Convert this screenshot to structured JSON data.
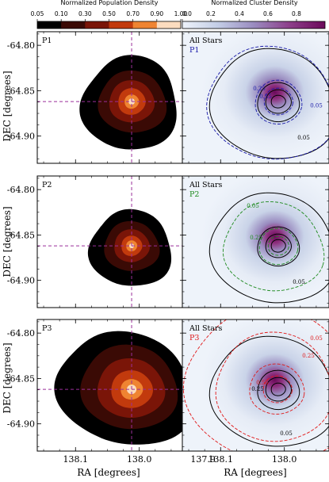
{
  "colors": {
    "pop_scale": [
      "#000000",
      "#3a0a05",
      "#7a1508",
      "#c23a0d",
      "#ef8432",
      "#fbdcbf"
    ],
    "cluster_bg": "#e9eff8",
    "cluster_mid": "#8e86b8",
    "cluster_peak": "#6b0a5a",
    "all_stars_line": "#000000",
    "p1_color": "#1a1aa8",
    "p2_color": "#1d8a1d",
    "p3_color": "#e01818",
    "crosshair": "#9b2f9b"
  },
  "chart_data": {
    "type": "contour",
    "x_label": "RA [degrees]",
    "y_label": "DEC [degrees]",
    "x_ticks": [
      138.1,
      138.0,
      137.9
    ],
    "x_tick_labels": [
      "138.1",
      "138.0",
      "137.9"
    ],
    "x_range": [
      138.16,
      137.93
    ],
    "y_ticks": [
      -64.8,
      -64.85,
      -64.9
    ],
    "y_tick_labels": [
      "-64.80",
      "-64.85",
      "-64.90"
    ],
    "y_range": [
      -64.93,
      -64.785
    ],
    "crosshair": {
      "ra": 138.012,
      "dec": -64.862
    },
    "left_colorbar": {
      "title": "Normalized Population Density",
      "levels": [
        0.05,
        0.1,
        0.3,
        0.5,
        0.7,
        0.9,
        1.0
      ],
      "tick_labels": [
        "0.05",
        "0.10",
        "0.30",
        "0.50",
        "0.70",
        "0.90",
        "1.00"
      ]
    },
    "right_colorbar": {
      "title": "Normalized Cluster Density",
      "range": [
        0.0,
        1.0
      ],
      "ticks": [
        0.0,
        0.2,
        0.4,
        0.6,
        0.8
      ],
      "tick_labels": [
        "0.0",
        "0.2",
        "0.4",
        "0.6",
        "0.8"
      ]
    },
    "rows": [
      {
        "population": "P1",
        "all_stars_legend": "All Stars",
        "pop_legend": "P1",
        "pop_contour_labels": [
          "0.05",
          "0.25",
          "0.55"
        ],
        "all_contour_labels": [
          "0.05"
        ]
      },
      {
        "population": "P2",
        "all_stars_legend": "All Stars",
        "pop_legend": "P2",
        "pop_contour_labels": [
          "0.05",
          "0.25"
        ],
        "all_contour_labels": [
          "0.05"
        ]
      },
      {
        "population": "P3",
        "all_stars_legend": "All Stars",
        "pop_legend": "P3",
        "pop_contour_labels": [
          "0.05",
          "0.25",
          "0.55"
        ],
        "all_contour_labels": [
          "0.05",
          "0.25"
        ]
      }
    ]
  }
}
